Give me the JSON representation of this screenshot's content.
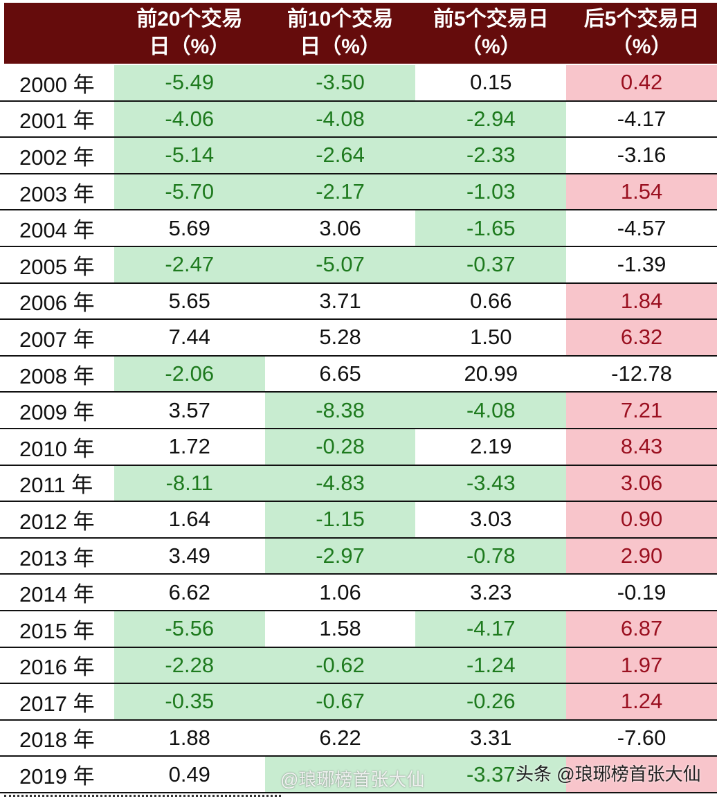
{
  "header": [
    "",
    "前20个交易日（%）",
    "前10个交易日（%）",
    "前5个交易日（%）",
    "后5个交易日（%）"
  ],
  "rows": [
    {
      "year": "2000 年",
      "cells": [
        {
          "v": "-5.49",
          "c": "g"
        },
        {
          "v": "-3.50",
          "c": "g"
        },
        {
          "v": "0.15",
          "c": "n"
        },
        {
          "v": "0.42",
          "c": "r"
        }
      ]
    },
    {
      "year": "2001 年",
      "cells": [
        {
          "v": "-4.06",
          "c": "g"
        },
        {
          "v": "-4.08",
          "c": "g"
        },
        {
          "v": "-2.94",
          "c": "g"
        },
        {
          "v": "-4.17",
          "c": "n"
        }
      ]
    },
    {
      "year": "2002 年",
      "cells": [
        {
          "v": "-5.14",
          "c": "g"
        },
        {
          "v": "-2.64",
          "c": "g"
        },
        {
          "v": "-2.33",
          "c": "g"
        },
        {
          "v": "-3.16",
          "c": "n"
        }
      ]
    },
    {
      "year": "2003 年",
      "cells": [
        {
          "v": "-5.70",
          "c": "g"
        },
        {
          "v": "-2.17",
          "c": "g"
        },
        {
          "v": "-1.03",
          "c": "g"
        },
        {
          "v": "1.54",
          "c": "r"
        }
      ]
    },
    {
      "year": "2004 年",
      "cells": [
        {
          "v": "5.69",
          "c": "n"
        },
        {
          "v": "3.06",
          "c": "n"
        },
        {
          "v": "-1.65",
          "c": "g"
        },
        {
          "v": "-4.57",
          "c": "n"
        }
      ]
    },
    {
      "year": "2005 年",
      "cells": [
        {
          "v": "-2.47",
          "c": "g"
        },
        {
          "v": "-5.07",
          "c": "g"
        },
        {
          "v": "-0.37",
          "c": "g"
        },
        {
          "v": "-1.39",
          "c": "n"
        }
      ]
    },
    {
      "year": "2006 年",
      "cells": [
        {
          "v": "5.65",
          "c": "n"
        },
        {
          "v": "3.71",
          "c": "n"
        },
        {
          "v": "0.66",
          "c": "n"
        },
        {
          "v": "1.84",
          "c": "r"
        }
      ]
    },
    {
      "year": "2007 年",
      "cells": [
        {
          "v": "7.44",
          "c": "n"
        },
        {
          "v": "5.28",
          "c": "n"
        },
        {
          "v": "1.50",
          "c": "n"
        },
        {
          "v": "6.32",
          "c": "r"
        }
      ]
    },
    {
      "year": "2008 年",
      "cells": [
        {
          "v": "-2.06",
          "c": "g"
        },
        {
          "v": "6.65",
          "c": "n"
        },
        {
          "v": "20.99",
          "c": "n"
        },
        {
          "v": "-12.78",
          "c": "n"
        }
      ]
    },
    {
      "year": "2009 年",
      "cells": [
        {
          "v": "3.57",
          "c": "n"
        },
        {
          "v": "-8.38",
          "c": "g"
        },
        {
          "v": "-4.08",
          "c": "g"
        },
        {
          "v": "7.21",
          "c": "r"
        }
      ]
    },
    {
      "year": "2010 年",
      "cells": [
        {
          "v": "1.72",
          "c": "n"
        },
        {
          "v": "-0.28",
          "c": "g"
        },
        {
          "v": "2.19",
          "c": "n"
        },
        {
          "v": "8.43",
          "c": "r"
        }
      ]
    },
    {
      "year": "2011 年",
      "cells": [
        {
          "v": "-8.11",
          "c": "g"
        },
        {
          "v": "-4.83",
          "c": "g"
        },
        {
          "v": "-3.43",
          "c": "g"
        },
        {
          "v": "3.06",
          "c": "r"
        }
      ]
    },
    {
      "year": "2012 年",
      "cells": [
        {
          "v": "1.64",
          "c": "n"
        },
        {
          "v": "-1.15",
          "c": "g"
        },
        {
          "v": "3.03",
          "c": "n"
        },
        {
          "v": "0.90",
          "c": "r"
        }
      ]
    },
    {
      "year": "2013 年",
      "cells": [
        {
          "v": "3.49",
          "c": "n"
        },
        {
          "v": "-2.97",
          "c": "g"
        },
        {
          "v": "-0.78",
          "c": "g"
        },
        {
          "v": "2.90",
          "c": "r"
        }
      ]
    },
    {
      "year": "2014 年",
      "cells": [
        {
          "v": "6.62",
          "c": "n"
        },
        {
          "v": "1.06",
          "c": "n"
        },
        {
          "v": "3.23",
          "c": "n"
        },
        {
          "v": "-0.19",
          "c": "n"
        }
      ]
    },
    {
      "year": "2015 年",
      "cells": [
        {
          "v": "-5.56",
          "c": "g"
        },
        {
          "v": "1.58",
          "c": "n"
        },
        {
          "v": "-4.17",
          "c": "g"
        },
        {
          "v": "6.87",
          "c": "r"
        }
      ]
    },
    {
      "year": "2016 年",
      "cells": [
        {
          "v": "-2.28",
          "c": "g"
        },
        {
          "v": "-0.62",
          "c": "g"
        },
        {
          "v": "-1.24",
          "c": "g"
        },
        {
          "v": "1.97",
          "c": "r"
        }
      ]
    },
    {
      "year": "2017 年",
      "cells": [
        {
          "v": "-0.35",
          "c": "g"
        },
        {
          "v": "-0.67",
          "c": "g"
        },
        {
          "v": "-0.26",
          "c": "g"
        },
        {
          "v": "1.24",
          "c": "r"
        }
      ]
    },
    {
      "year": "2018 年",
      "cells": [
        {
          "v": "1.88",
          "c": "n"
        },
        {
          "v": "6.22",
          "c": "n"
        },
        {
          "v": "3.31",
          "c": "n"
        },
        {
          "v": "-7.60",
          "c": "n"
        }
      ]
    },
    {
      "year": "2019 年",
      "cells": [
        {
          "v": "0.49",
          "c": "n"
        },
        {
          "v": "",
          "c": "g"
        },
        {
          "v": "-3.37",
          "c": "g"
        },
        {
          "v": "",
          "c": "r"
        }
      ]
    }
  ],
  "watermarks": [
    "@琅琊榜首张大仙",
    "头条 @琅琊榜首张大仙"
  ],
  "colors": {
    "header_bg": "#650c0c",
    "green_bg": "#c8ecd0",
    "green_text": "#1e7a1e",
    "red_bg": "#f8c5cb",
    "red_text": "#9a1020"
  }
}
